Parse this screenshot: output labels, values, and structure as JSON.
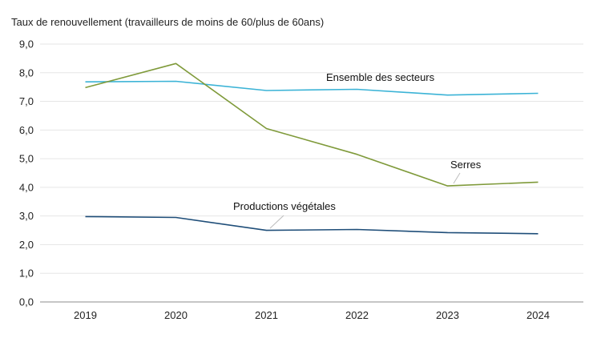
{
  "chart_data": {
    "type": "line",
    "title": "Taux de renouvellement (travailleurs de moins de 60/plus de 60ans)",
    "xlabel": "",
    "ylabel": "",
    "ylim": [
      0,
      9
    ],
    "y_ticks": [
      "0,0",
      "1,0",
      "2,0",
      "3,0",
      "4,0",
      "5,0",
      "6,0",
      "7,0",
      "8,0",
      "9,0"
    ],
    "x": [
      "2019",
      "2020",
      "2021",
      "2022",
      "2023",
      "2024"
    ],
    "grid": true,
    "legend": "none",
    "series": [
      {
        "name": "Ensemble des secteurs",
        "color": "#3bb3d6",
        "values": [
          7.68,
          7.7,
          7.38,
          7.42,
          7.22,
          7.28
        ]
      },
      {
        "name": "Serres",
        "color": "#7f9a3a",
        "values": [
          7.48,
          8.32,
          6.05,
          5.15,
          4.05,
          4.18
        ]
      },
      {
        "name": "Productions végétales",
        "color": "#1f4e79",
        "values": [
          2.98,
          2.95,
          2.5,
          2.53,
          2.42,
          2.38
        ]
      }
    ]
  }
}
